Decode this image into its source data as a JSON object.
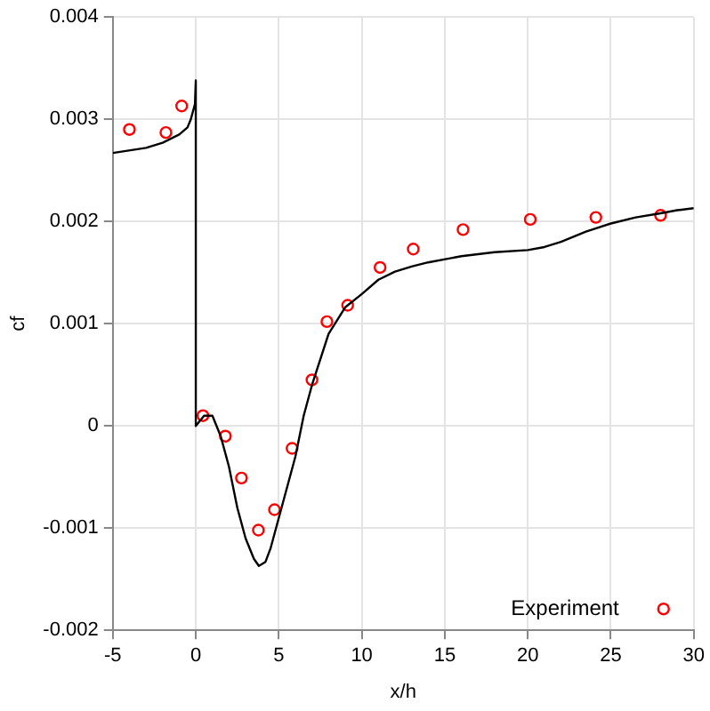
{
  "chart_data": {
    "type": "scatter",
    "xlabel": "x/h",
    "ylabel": "cf",
    "xlim": [
      -5,
      30
    ],
    "xticks": [
      -5,
      0,
      5,
      10,
      15,
      20,
      25,
      30
    ],
    "ylim": [
      -0.002,
      0.004
    ],
    "yticks": [
      -0.002,
      -0.001,
      0,
      0.001,
      0.002,
      0.003,
      0.004
    ],
    "grid": true,
    "legend": "bottom right",
    "series": [
      {
        "type": "line",
        "color": "#000000",
        "marker": "none",
        "line_style": "solid",
        "x": [
          -5,
          -3,
          -2,
          -1,
          -0.5,
          -0.3,
          -0.05,
          0,
          0,
          0.5,
          1,
          1.5,
          2,
          2.5,
          3,
          3.5,
          3.8,
          4.2,
          4.5,
          5,
          5.5,
          6,
          6.5,
          7,
          8,
          9,
          10,
          11,
          12,
          13,
          14,
          16,
          18,
          20,
          21,
          22,
          23.5,
          25,
          26.5,
          28,
          29,
          30
        ],
        "values": [
          0.00267,
          0.00272,
          0.00277,
          0.00285,
          0.00292,
          0.003,
          0.00315,
          0.00338,
          0,
          0.0001,
          0.0001,
          -0.0001,
          -0.0004,
          -0.0008,
          -0.0011,
          -0.0013,
          -0.00137,
          -0.00133,
          -0.0012,
          -0.0009,
          -0.0006,
          -0.0003,
          0.0001,
          0.0004,
          0.0009,
          0.00116,
          0.00129,
          0.00143,
          0.00151,
          0.00156,
          0.0016,
          0.00166,
          0.0017,
          0.00172,
          0.00175,
          0.0018,
          0.0019,
          0.00198,
          0.00204,
          0.00208,
          0.00211,
          0.00213
        ]
      },
      {
        "name": "Experiment",
        "type": "scatter",
        "color": "#ff0000",
        "marker": "circle",
        "x": [
          -4.0,
          -1.8,
          -0.85,
          0.43,
          1.78,
          2.75,
          3.77,
          4.74,
          5.8,
          7.0,
          7.9,
          9.15,
          11.1,
          13.1,
          16.1,
          20.15,
          24.1,
          28.0
        ],
        "values": [
          0.0029,
          0.00287,
          0.00313,
          0.0001,
          -0.0001,
          -0.00051,
          -0.00102,
          -0.00082,
          -0.00022,
          0.00045,
          0.00102,
          0.00118,
          0.00155,
          0.00173,
          0.00192,
          0.00202,
          0.00204,
          0.00206
        ]
      }
    ]
  }
}
